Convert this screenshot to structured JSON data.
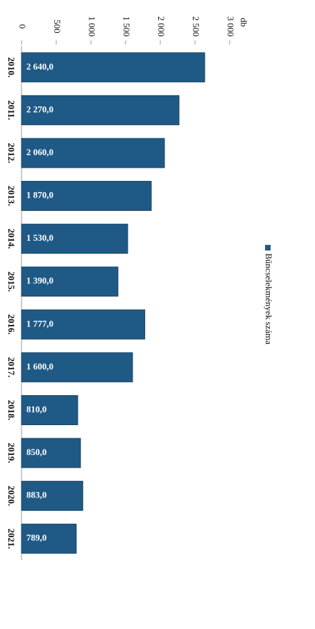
{
  "chart_data": {
    "type": "bar",
    "orientation": "horizontal",
    "y_label": "db",
    "categories": [
      "2010.",
      "2011.",
      "2012.",
      "2013.",
      "2014.",
      "2015.",
      "2016.",
      "2017.",
      "2018.",
      "2019.",
      "2020.",
      "2021."
    ],
    "series": [
      {
        "name": "Bűncselekmények száma",
        "color": "#1f5a87",
        "values": [
          2640,
          2270,
          2060,
          1870,
          1530,
          1390,
          1777,
          1600,
          810,
          850,
          883,
          789
        ],
        "value_labels": [
          "2 640,0",
          "2 270,0",
          "2 060,0",
          "1 870,0",
          "1 530,0",
          "1 390,0",
          "1 777,0",
          "1 600,0",
          "810,0",
          "850,0",
          "883,0",
          "789,0"
        ]
      }
    ],
    "ylim": [
      0,
      3000
    ],
    "yticks": [
      0,
      500,
      {
        "value": 1000,
        "label": "1 000"
      },
      {
        "value": 1500,
        "label": "1 500"
      },
      {
        "value": 2000,
        "label": "2 000"
      },
      {
        "value": 2500,
        "label": "2 500"
      },
      {
        "value": 3000,
        "label": "3 000"
      }
    ],
    "legend": "right"
  }
}
